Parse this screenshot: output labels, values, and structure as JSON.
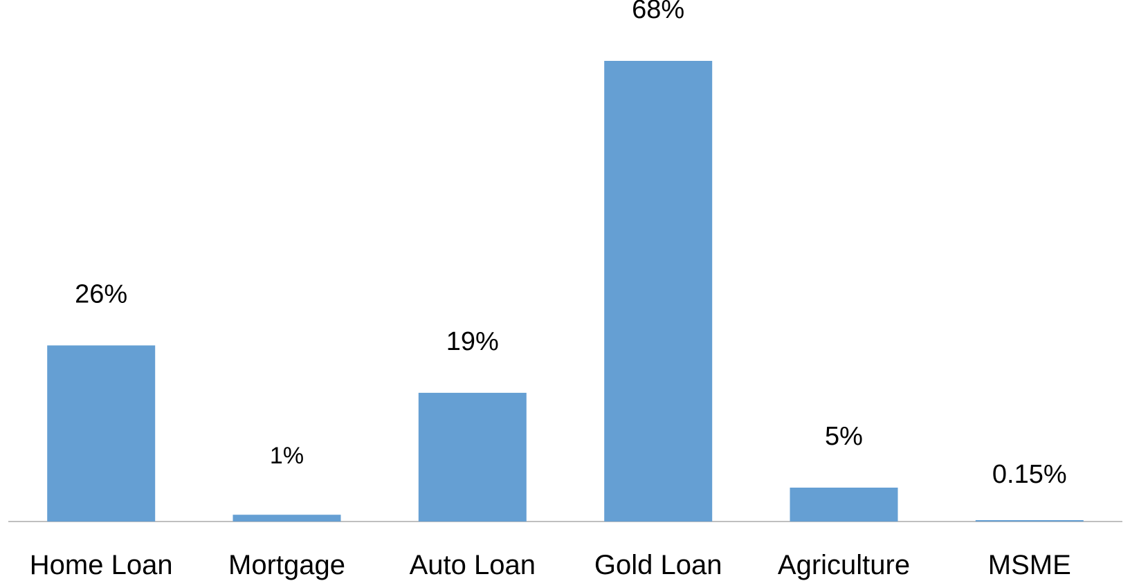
{
  "chart_data": {
    "type": "bar",
    "title": "",
    "xlabel": "",
    "ylabel": "",
    "categories": [
      "Home Loan",
      "Mortgage",
      "Auto Loan",
      "Gold Loan",
      "Agriculture",
      "MSME"
    ],
    "values": [
      26,
      1,
      19,
      68,
      5,
      0.15
    ],
    "data_labels": [
      "26%",
      "1%",
      "19%",
      "68%",
      "5%",
      "0.15%"
    ],
    "ylim": [
      0,
      68
    ],
    "grid": false,
    "legend": "none",
    "bar_color": "#659FD3",
    "axis_color": "#BFBFBF"
  }
}
